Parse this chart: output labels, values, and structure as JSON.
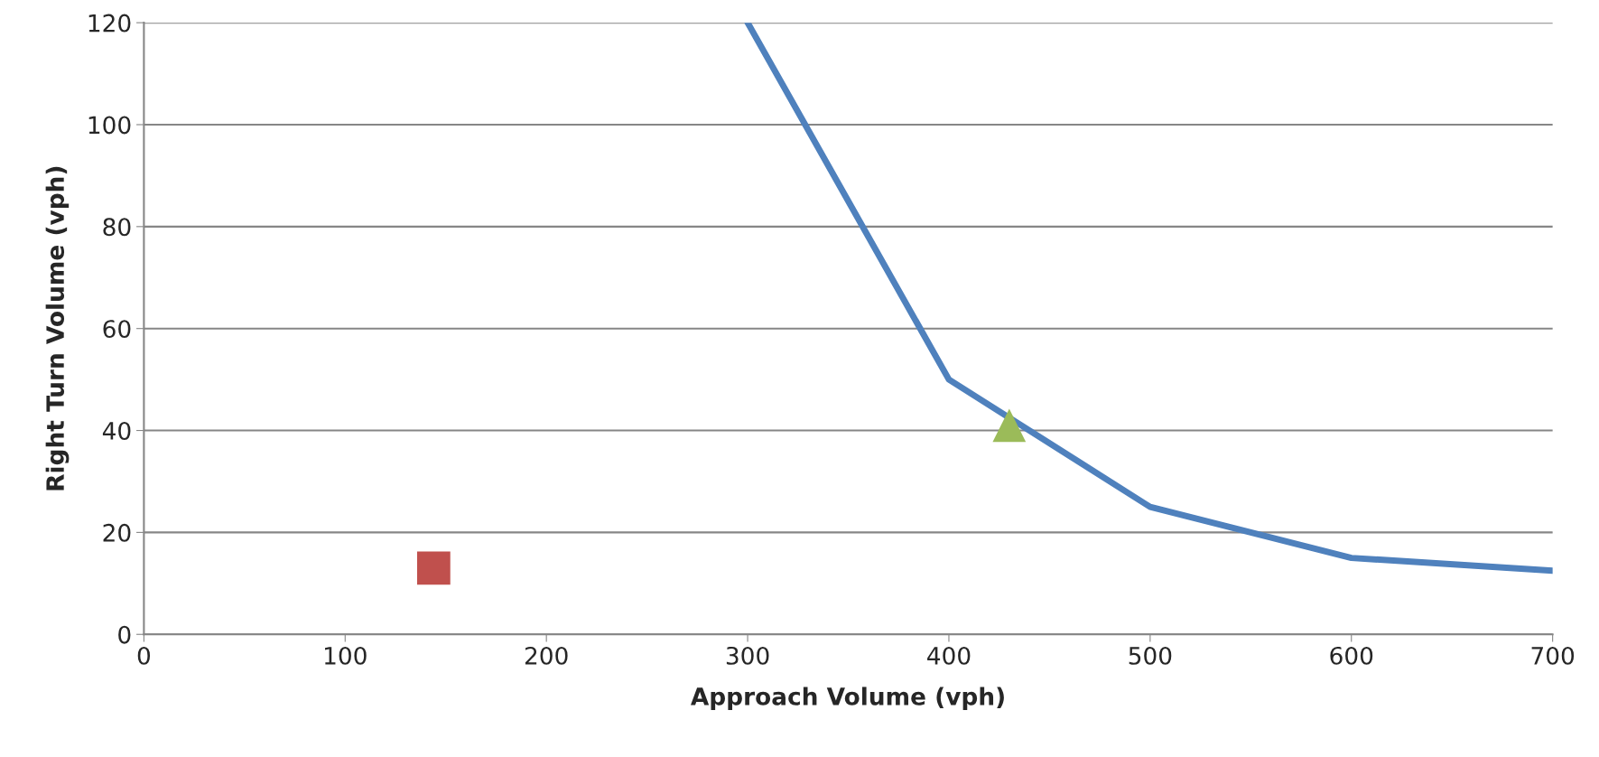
{
  "chart_data": {
    "type": "line",
    "xlabel": "Approach Volume (vph)",
    "ylabel": "Right Turn Volume (vph)",
    "xlim": [
      0,
      700
    ],
    "xticks": [
      0,
      100,
      200,
      300,
      400,
      500,
      600,
      700
    ],
    "ylim": [
      0,
      120
    ],
    "yticks": [
      0,
      20,
      40,
      60,
      80,
      100,
      120
    ],
    "grid": "y",
    "series": [
      {
        "type": "line",
        "color": "#4f81bd",
        "x": [
          300,
          400,
          500,
          600,
          700
        ],
        "values": [
          120,
          50,
          25,
          15,
          12.5
        ],
        "marker": "none",
        "line_style": "solid"
      },
      {
        "type": "scatter",
        "color": "#c0504d",
        "x": [
          144
        ],
        "values": [
          13
        ],
        "marker": "square"
      },
      {
        "type": "scatter",
        "color": "#9bbb59",
        "x": [
          430
        ],
        "values": [
          41
        ],
        "marker": "triangle"
      }
    ]
  }
}
